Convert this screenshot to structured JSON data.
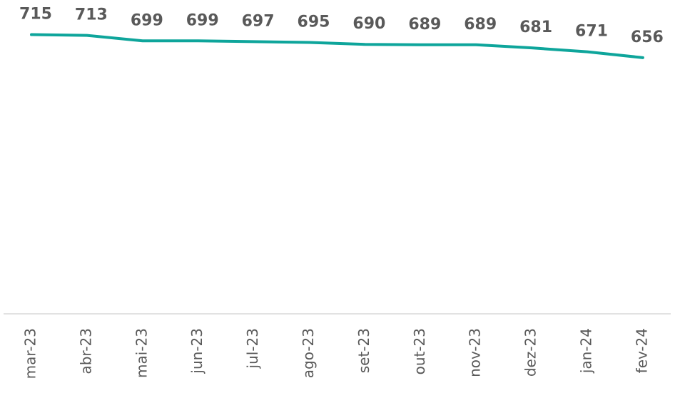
{
  "chart_data": {
    "type": "line",
    "categories": [
      "mar-23",
      "abr-23",
      "mai-23",
      "jun-23",
      "jul-23",
      "ago-23",
      "set-23",
      "out-23",
      "nov-23",
      "dez-23",
      "jan-24",
      "fev-24"
    ],
    "series": [
      {
        "name": null,
        "color": "#0ea59b",
        "values": [
          715,
          713,
          699,
          699,
          697,
          695,
          690,
          689,
          689,
          681,
          671,
          656
        ]
      }
    ],
    "ylim": [
      0,
      800
    ],
    "grid": false,
    "data_labels": true
  }
}
